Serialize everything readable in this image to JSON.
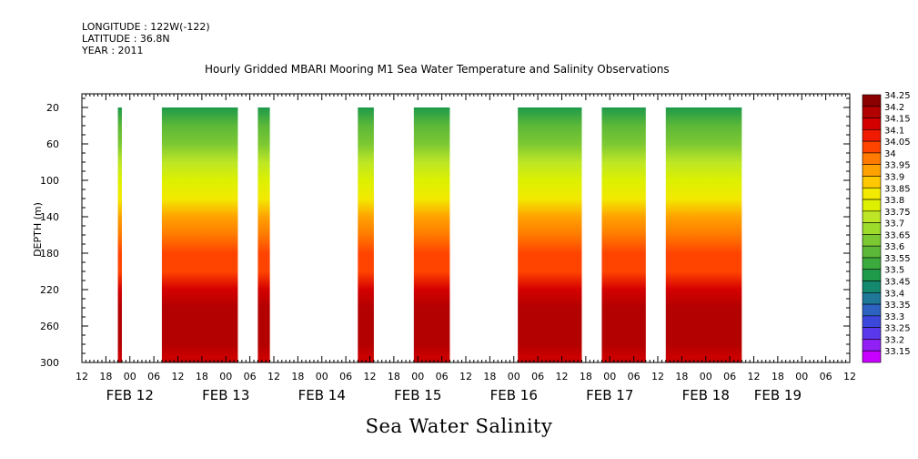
{
  "header": {
    "longitude": "LONGITUDE : 122W(-122)",
    "latitude": "LATITUDE : 36.8N",
    "year": "YEAR : 2011"
  },
  "title": "Hourly Gridded MBARI Mooring M1 Sea Water Temperature and Salinity Observations",
  "variable_title": "Sea Water Salinity",
  "chart_data": {
    "type": "heatmap",
    "title": "Hourly Gridded MBARI Mooring M1 Sea Water Temperature and Salinity Observations",
    "xlabel": "",
    "ylabel": "DEPTH (m)",
    "x_unit": "hours since 2011-02-11 12:00",
    "xlim": [
      0,
      192
    ],
    "ylim": [
      300,
      5
    ],
    "y_ticks": [
      20,
      60,
      100,
      140,
      180,
      220,
      260,
      300
    ],
    "x_hour_ticks": [
      "12",
      "18",
      "00",
      "06",
      "12",
      "18",
      "00",
      "06",
      "12",
      "18",
      "00",
      "06",
      "12",
      "18",
      "00",
      "06",
      "12",
      "18",
      "00",
      "06",
      "12",
      "18",
      "00",
      "06",
      "12",
      "18",
      "00",
      "06",
      "12",
      "18",
      "00",
      "06",
      "12"
    ],
    "x_date_labels": [
      {
        "label": "FEB 12",
        "x": 12
      },
      {
        "label": "FEB 13",
        "x": 36
      },
      {
        "label": "FEB 14",
        "x": 60
      },
      {
        "label": "FEB 15",
        "x": 84
      },
      {
        "label": "FEB 16",
        "x": 108
      },
      {
        "label": "FEB 17",
        "x": 132
      },
      {
        "label": "FEB 18",
        "x": 156
      },
      {
        "label": "FEB 19",
        "x": 174
      }
    ],
    "data_segments": [
      {
        "start": 9,
        "end": 10
      },
      {
        "start": 20,
        "end": 39
      },
      {
        "start": 44,
        "end": 47
      },
      {
        "start": 69,
        "end": 73
      },
      {
        "start": 83,
        "end": 92
      },
      {
        "start": 109,
        "end": 125
      },
      {
        "start": 130,
        "end": 141
      },
      {
        "start": 146,
        "end": 165
      }
    ],
    "depth_profile": [
      {
        "depth": 20,
        "salinity": 33.5
      },
      {
        "depth": 40,
        "salinity": 33.6
      },
      {
        "depth": 60,
        "salinity": 33.65
      },
      {
        "depth": 80,
        "salinity": 33.75
      },
      {
        "depth": 100,
        "salinity": 33.8
      },
      {
        "depth": 120,
        "salinity": 33.85
      },
      {
        "depth": 140,
        "salinity": 33.95
      },
      {
        "depth": 160,
        "salinity": 34.0
      },
      {
        "depth": 180,
        "salinity": 34.05
      },
      {
        "depth": 200,
        "salinity": 34.05
      },
      {
        "depth": 220,
        "salinity": 34.15
      },
      {
        "depth": 240,
        "salinity": 34.2
      },
      {
        "depth": 260,
        "salinity": 34.2
      },
      {
        "depth": 280,
        "salinity": 34.2
      },
      {
        "depth": 300,
        "salinity": 34.15
      }
    ],
    "colorbar": {
      "levels": [
        "34.25",
        "34.2",
        "34.15",
        "34.1",
        "34.05",
        "34",
        "33.95",
        "33.9",
        "33.85",
        "33.8",
        "33.75",
        "33.7",
        "33.65",
        "33.6",
        "33.55",
        "33.5",
        "33.45",
        "33.4",
        "33.35",
        "33.3",
        "33.25",
        "33.2",
        "33.15"
      ],
      "colors": [
        "#8b0000",
        "#b30000",
        "#d40000",
        "#ef1a00",
        "#ff4400",
        "#ff7a00",
        "#ffa200",
        "#ffc800",
        "#f2ea00",
        "#dcf000",
        "#bde626",
        "#9edc2c",
        "#7cc832",
        "#5cb838",
        "#3caa3c",
        "#1e9a4a",
        "#14896e",
        "#1f7898",
        "#2c62c0",
        "#3c48dc",
        "#5a38ec",
        "#9020f4",
        "#c800ff"
      ]
    }
  }
}
